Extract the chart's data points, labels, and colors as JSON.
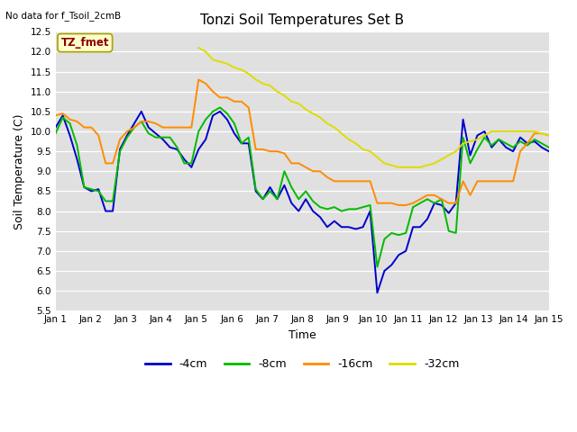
{
  "title": "Tonzi Soil Temperatures Set B",
  "no_data_label": "No data for f_Tsoil_2cmB",
  "tz_fmet_label": "TZ_fmet",
  "xlabel": "Time",
  "ylabel": "Soil Temperature (C)",
  "ylim": [
    5.5,
    12.5
  ],
  "x_labels": [
    "Jan 1",
    "Jan 2",
    "Jan 3",
    "Jan 4",
    "Jan 5",
    "Jan 6",
    "Jan 7",
    "Jan 8",
    "Jan 9",
    "Jan 10",
    "Jan 11",
    "Jan 12",
    "Jan 13",
    "Jan 14",
    "Jan 15"
  ],
  "bg_color": "#e0e0e0",
  "line_4cm_color": "#0000cc",
  "line_8cm_color": "#00bb00",
  "line_16cm_color": "#ff8c00",
  "line_32cm_color": "#dddd00",
  "line_4cm": [
    10.1,
    10.4,
    9.9,
    9.3,
    8.6,
    8.5,
    8.55,
    8.0,
    8.0,
    9.55,
    9.9,
    10.2,
    10.5,
    10.1,
    9.95,
    9.8,
    9.6,
    9.55,
    9.3,
    9.1,
    9.55,
    9.8,
    10.4,
    10.5,
    10.3,
    9.95,
    9.7,
    9.7,
    8.5,
    8.3,
    8.6,
    8.3,
    8.65,
    8.2,
    8.0,
    8.3,
    8.0,
    7.85,
    7.6,
    7.75,
    7.6,
    7.6,
    7.55,
    7.6,
    8.0,
    5.95,
    6.5,
    6.65,
    6.9,
    7.0,
    7.6,
    7.6,
    7.8,
    8.2,
    8.15,
    7.95,
    8.2,
    10.3,
    9.4,
    9.9,
    10.0,
    9.6,
    9.8,
    9.6,
    9.5,
    9.85,
    9.7,
    9.75,
    9.6,
    9.5
  ],
  "line_8cm": [
    9.95,
    10.35,
    10.2,
    9.65,
    8.6,
    8.55,
    8.5,
    8.25,
    8.25,
    9.5,
    9.85,
    10.1,
    10.25,
    9.95,
    9.85,
    9.85,
    9.85,
    9.6,
    9.2,
    9.2,
    10.0,
    10.3,
    10.5,
    10.6,
    10.45,
    10.2,
    9.7,
    9.85,
    8.55,
    8.3,
    8.5,
    8.3,
    9.0,
    8.6,
    8.3,
    8.5,
    8.25,
    8.1,
    8.05,
    8.1,
    8.0,
    8.05,
    8.05,
    8.1,
    8.15,
    6.6,
    7.3,
    7.45,
    7.4,
    7.45,
    8.1,
    8.2,
    8.3,
    8.2,
    8.3,
    7.5,
    7.45,
    9.85,
    9.2,
    9.55,
    9.85,
    9.65,
    9.8,
    9.7,
    9.6,
    9.75,
    9.65,
    9.8,
    9.7,
    9.6
  ],
  "line_16cm": [
    10.4,
    10.45,
    10.3,
    10.25,
    10.1,
    10.1,
    9.9,
    9.2,
    9.2,
    9.8,
    10.0,
    10.1,
    10.25,
    10.25,
    10.2,
    10.1,
    10.1,
    10.1,
    10.1,
    10.1,
    11.3,
    11.2,
    11.0,
    10.85,
    10.85,
    10.75,
    10.75,
    10.6,
    9.55,
    9.55,
    9.5,
    9.5,
    9.45,
    9.2,
    9.2,
    9.1,
    9.0,
    9.0,
    8.85,
    8.75,
    8.75,
    8.75,
    8.75,
    8.75,
    8.75,
    8.2,
    8.2,
    8.2,
    8.15,
    8.15,
    8.2,
    8.3,
    8.4,
    8.4,
    8.3,
    8.2,
    8.2,
    8.75,
    8.4,
    8.75,
    8.75,
    8.75,
    8.75,
    8.75,
    8.75,
    9.5,
    9.7,
    9.95,
    9.95,
    9.9
  ],
  "line_32cm": [
    null,
    null,
    null,
    null,
    null,
    null,
    null,
    null,
    null,
    null,
    null,
    null,
    null,
    null,
    null,
    null,
    null,
    null,
    null,
    null,
    12.1,
    12.0,
    11.8,
    11.75,
    11.7,
    11.6,
    11.55,
    11.45,
    11.3,
    11.2,
    11.15,
    11.0,
    10.9,
    10.75,
    10.7,
    10.55,
    10.45,
    10.35,
    10.2,
    10.1,
    9.95,
    9.8,
    9.7,
    9.55,
    9.5,
    9.35,
    9.2,
    9.15,
    9.1,
    9.1,
    9.1,
    9.1,
    9.15,
    9.2,
    9.3,
    9.4,
    9.5,
    9.7,
    9.75,
    9.8,
    9.9,
    10.0,
    10.0,
    10.0,
    10.0,
    10.0,
    10.0,
    10.0,
    9.95,
    9.9
  ],
  "n_points": 70,
  "legend_labels": [
    "-4cm",
    "-8cm",
    "-16cm",
    "-32cm"
  ]
}
